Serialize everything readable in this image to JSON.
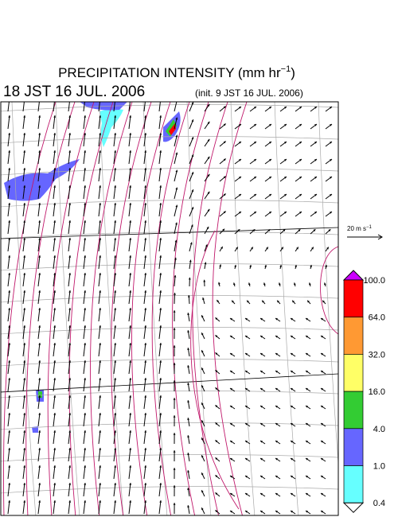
{
  "header": {
    "title": "PRECIPITATION INTENSITY (mm hr",
    "title_exponent": "−1",
    "title_end": ")",
    "valid_time": "18 JST 16 JUL. 2006",
    "init_time": "(init. 9 JST 16 JUL. 2006)"
  },
  "wind_scale": {
    "label": "20 m s",
    "label_exponent": "−1"
  },
  "colorbar": {
    "labels": [
      "100.0",
      "64.0",
      "32.0",
      "16.0",
      "4.0",
      "1.0",
      "0.4"
    ],
    "colors": [
      "#ff0000",
      "#ff9933",
      "#ffff66",
      "#33cc33",
      "#6666ff",
      "#66ffff"
    ],
    "over_color": "#cc00ff",
    "under_color": "#ffffff"
  }
}
